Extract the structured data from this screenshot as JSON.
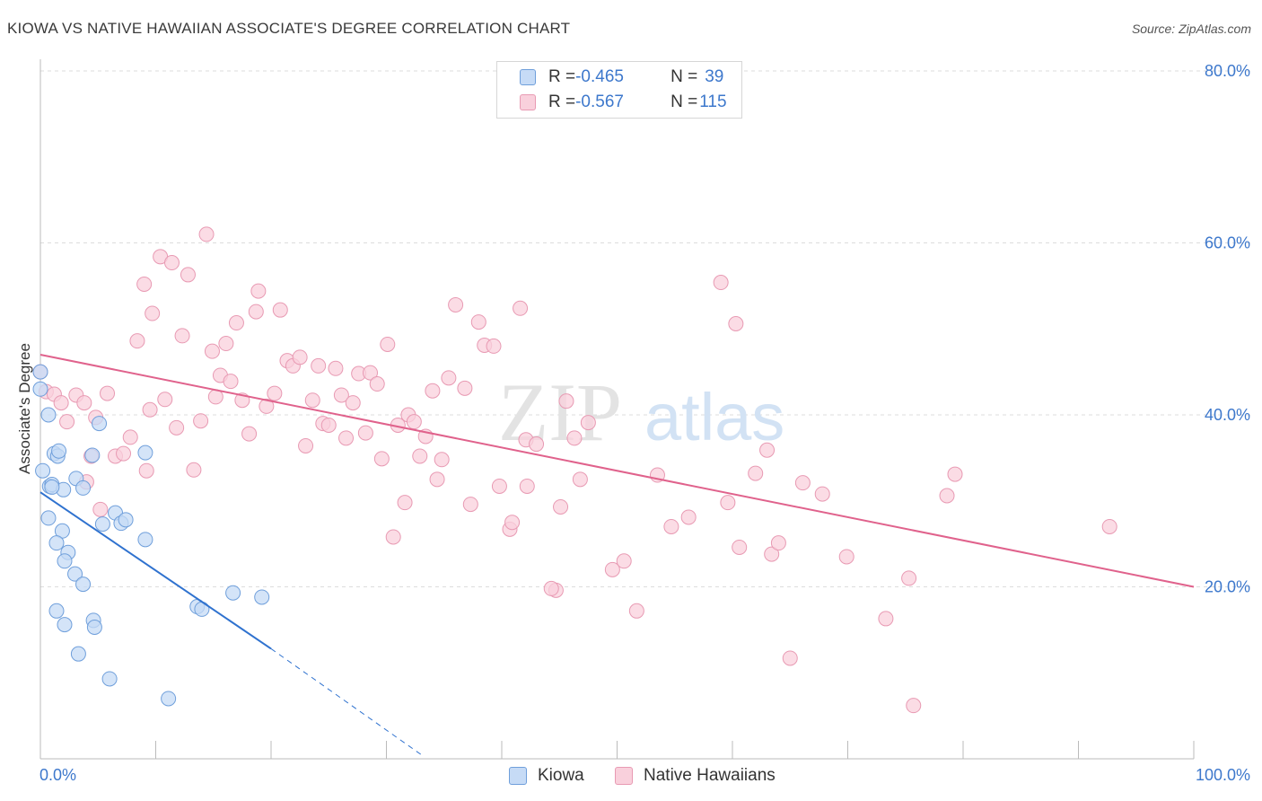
{
  "title": "KIOWA VS NATIVE HAWAIIAN ASSOCIATE'S DEGREE CORRELATION CHART",
  "source": "Source: ZipAtlas.com",
  "watermark": {
    "zip": "ZIP",
    "atlas": "atlas"
  },
  "legend": {
    "rows": [
      {
        "r_label": "R = ",
        "r_value": "-0.465",
        "n_label": "N = ",
        "n_value": "39",
        "color": "#aac8ef"
      },
      {
        "r_label": "R = ",
        "r_value": "-0.567",
        "n_label": "N = ",
        "n_value": "115",
        "color": "#f5b8cb"
      }
    ]
  },
  "bottom_legend": {
    "kiowa": "Kiowa",
    "hawaiian": "Native Hawaiians"
  },
  "colors": {
    "kiowa_fill": "#c6dbf6",
    "kiowa_edge": "#6f9fdb",
    "kiowa_line": "#2f72cf",
    "haw_fill": "#f9d0dc",
    "haw_edge": "#e89ab3",
    "haw_line": "#e0628c",
    "axis_text": "#3d78cc",
    "grid": "#dcdcdc"
  },
  "chart_data": {
    "type": "scatter",
    "title": "KIOWA VS NATIVE HAWAIIAN ASSOCIATE'S DEGREE CORRELATION CHART",
    "xlabel": "",
    "ylabel": "Associate's Degree",
    "xlim": [
      0,
      100
    ],
    "ylim": [
      0,
      80
    ],
    "x_tick_labels": [
      "0.0%",
      "100.0%"
    ],
    "y_ticks": [
      20,
      40,
      60,
      80
    ],
    "y_tick_labels": [
      "20.0%",
      "40.0%",
      "60.0%",
      "80.0%"
    ],
    "grid": true,
    "legend_position": "top-center",
    "series": [
      {
        "name": "Kiowa",
        "r": -0.465,
        "n": 39,
        "trend": {
          "x0": 0,
          "y0": 31.0,
          "x1": 20,
          "y1": 12.8,
          "dash_to_x": 33,
          "dash_to_y": 0.5
        },
        "points": [
          [
            0.0,
            45.0
          ],
          [
            0.0,
            43.0
          ],
          [
            0.7,
            40.0
          ],
          [
            0.2,
            33.5
          ],
          [
            0.8,
            31.7
          ],
          [
            1.0,
            31.9
          ],
          [
            1.2,
            35.5
          ],
          [
            1.5,
            35.2
          ],
          [
            1.6,
            35.8
          ],
          [
            2.0,
            31.3
          ],
          [
            0.7,
            28.0
          ],
          [
            1.9,
            26.5
          ],
          [
            1.4,
            25.1
          ],
          [
            2.4,
            24.0
          ],
          [
            2.1,
            23.0
          ],
          [
            3.1,
            32.6
          ],
          [
            3.7,
            31.5
          ],
          [
            4.5,
            35.3
          ],
          [
            5.1,
            39.0
          ],
          [
            3.0,
            21.5
          ],
          [
            3.7,
            20.3
          ],
          [
            1.4,
            17.2
          ],
          [
            2.1,
            15.6
          ],
          [
            4.6,
            16.1
          ],
          [
            4.7,
            15.3
          ],
          [
            3.3,
            12.2
          ],
          [
            5.4,
            27.3
          ],
          [
            6.5,
            28.6
          ],
          [
            7.0,
            27.4
          ],
          [
            7.4,
            27.8
          ],
          [
            9.1,
            35.6
          ],
          [
            9.1,
            25.5
          ],
          [
            13.6,
            17.7
          ],
          [
            14.0,
            17.4
          ],
          [
            16.7,
            19.3
          ],
          [
            19.2,
            18.8
          ],
          [
            6.0,
            9.3
          ],
          [
            11.1,
            7.0
          ],
          [
            1.0,
            31.6
          ]
        ]
      },
      {
        "name": "Native Hawaiians",
        "r": -0.567,
        "n": 115,
        "trend": {
          "x0": 0,
          "y0": 47.0,
          "x1": 100,
          "y1": 20.0
        },
        "points": [
          [
            0.0,
            45.0
          ],
          [
            0.5,
            42.7
          ],
          [
            1.2,
            42.4
          ],
          [
            1.8,
            41.4
          ],
          [
            2.3,
            39.2
          ],
          [
            3.1,
            42.3
          ],
          [
            3.8,
            41.4
          ],
          [
            4.0,
            32.2
          ],
          [
            4.4,
            35.2
          ],
          [
            4.8,
            39.7
          ],
          [
            5.2,
            29.0
          ],
          [
            5.8,
            42.5
          ],
          [
            6.5,
            35.2
          ],
          [
            7.2,
            35.5
          ],
          [
            7.8,
            37.4
          ],
          [
            8.4,
            48.6
          ],
          [
            9.0,
            55.2
          ],
          [
            9.2,
            33.5
          ],
          [
            9.5,
            40.6
          ],
          [
            9.7,
            51.8
          ],
          [
            10.4,
            58.4
          ],
          [
            10.8,
            41.8
          ],
          [
            11.4,
            57.7
          ],
          [
            11.8,
            38.5
          ],
          [
            12.3,
            49.2
          ],
          [
            12.8,
            56.3
          ],
          [
            13.3,
            33.6
          ],
          [
            13.9,
            39.3
          ],
          [
            14.4,
            61.0
          ],
          [
            14.9,
            47.4
          ],
          [
            15.2,
            42.1
          ],
          [
            15.6,
            44.6
          ],
          [
            16.1,
            48.3
          ],
          [
            16.5,
            43.9
          ],
          [
            17.0,
            50.7
          ],
          [
            17.5,
            41.7
          ],
          [
            18.1,
            37.8
          ],
          [
            18.7,
            52.0
          ],
          [
            18.9,
            54.4
          ],
          [
            19.6,
            41.0
          ],
          [
            20.3,
            42.5
          ],
          [
            20.8,
            52.2
          ],
          [
            21.4,
            46.3
          ],
          [
            21.9,
            45.7
          ],
          [
            22.5,
            46.7
          ],
          [
            23.0,
            36.4
          ],
          [
            23.6,
            41.7
          ],
          [
            24.1,
            45.7
          ],
          [
            24.5,
            39.0
          ],
          [
            25.0,
            38.8
          ],
          [
            25.6,
            45.4
          ],
          [
            26.1,
            42.3
          ],
          [
            26.5,
            37.3
          ],
          [
            27.1,
            41.4
          ],
          [
            27.6,
            44.8
          ],
          [
            28.2,
            37.9
          ],
          [
            28.6,
            44.9
          ],
          [
            29.2,
            43.6
          ],
          [
            29.6,
            34.9
          ],
          [
            30.1,
            48.2
          ],
          [
            30.6,
            25.8
          ],
          [
            31.0,
            38.8
          ],
          [
            31.6,
            29.8
          ],
          [
            31.9,
            40.0
          ],
          [
            32.4,
            39.2
          ],
          [
            32.9,
            35.2
          ],
          [
            33.4,
            37.5
          ],
          [
            34.0,
            42.8
          ],
          [
            34.4,
            32.5
          ],
          [
            34.8,
            34.8
          ],
          [
            35.4,
            44.3
          ],
          [
            36.0,
            52.8
          ],
          [
            36.8,
            43.1
          ],
          [
            37.3,
            29.6
          ],
          [
            38.0,
            50.8
          ],
          [
            38.5,
            48.1
          ],
          [
            39.3,
            48.0
          ],
          [
            39.8,
            31.7
          ],
          [
            40.7,
            26.7
          ],
          [
            40.9,
            27.5
          ],
          [
            41.6,
            52.4
          ],
          [
            42.2,
            31.7
          ],
          [
            42.1,
            37.1
          ],
          [
            43.0,
            36.6
          ],
          [
            44.7,
            19.6
          ],
          [
            44.3,
            19.8
          ],
          [
            45.1,
            29.3
          ],
          [
            45.6,
            41.6
          ],
          [
            46.3,
            37.3
          ],
          [
            46.8,
            32.5
          ],
          [
            47.5,
            39.1
          ],
          [
            49.6,
            22.0
          ],
          [
            50.6,
            23.0
          ],
          [
            51.7,
            17.2
          ],
          [
            53.5,
            33.0
          ],
          [
            54.7,
            27.0
          ],
          [
            56.2,
            28.1
          ],
          [
            59.0,
            55.4
          ],
          [
            59.6,
            29.8
          ],
          [
            60.3,
            50.6
          ],
          [
            60.6,
            24.6
          ],
          [
            62.0,
            33.2
          ],
          [
            63.0,
            35.9
          ],
          [
            63.4,
            23.8
          ],
          [
            64.0,
            25.1
          ],
          [
            65.0,
            11.7
          ],
          [
            66.1,
            32.1
          ],
          [
            67.8,
            30.8
          ],
          [
            69.9,
            23.5
          ],
          [
            73.3,
            16.3
          ],
          [
            75.3,
            21.0
          ],
          [
            75.7,
            6.2
          ],
          [
            78.6,
            30.6
          ],
          [
            79.3,
            33.1
          ],
          [
            92.7,
            27.0
          ]
        ]
      }
    ]
  }
}
